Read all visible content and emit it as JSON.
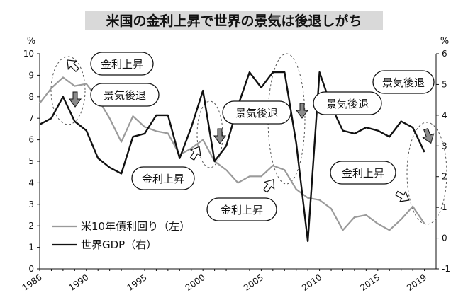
{
  "chart_data": {
    "type": "line",
    "title": "米国の金利上昇で世界の景気は後退しがち",
    "y_left_unit": "%",
    "y_right_unit": "%",
    "y_left_lim": [
      0,
      10
    ],
    "y_right_lim": [
      -1,
      6
    ],
    "y_left_ticks": [
      "0",
      "1",
      "2",
      "3",
      "4",
      "5",
      "6",
      "7",
      "8",
      "9",
      "10"
    ],
    "y_right_ticks": [
      "-1",
      "0",
      "1",
      "2",
      "3",
      "4",
      "5",
      "6"
    ],
    "x_lim": [
      1986,
      2020
    ],
    "x_ticks": [
      "1986",
      "1990",
      "1995",
      "2000",
      "2005",
      "2010",
      "2015",
      "2019"
    ],
    "series": [
      {
        "name": "米10年債利回り（左）",
        "axis": "left",
        "color": "#9a9a9a",
        "x": [
          1986,
          1987,
          1988,
          1989,
          1990,
          1991,
          1992,
          1993,
          1994,
          1995,
          1996,
          1997,
          1998,
          1999,
          2000,
          2001,
          2002,
          2003,
          2004,
          2005,
          2006,
          2007,
          2008,
          2009,
          2010,
          2011,
          2012,
          2013,
          2014,
          2015,
          2016,
          2017,
          2018,
          2019
        ],
        "values": [
          7.7,
          8.4,
          8.9,
          8.5,
          8.6,
          7.9,
          7.0,
          5.9,
          7.1,
          6.6,
          6.4,
          6.3,
          5.3,
          5.6,
          6.0,
          5.0,
          4.6,
          4.0,
          4.3,
          4.3,
          4.8,
          4.6,
          3.7,
          3.3,
          3.2,
          2.8,
          1.8,
          2.4,
          2.5,
          2.1,
          1.8,
          2.3,
          2.9,
          2.1
        ]
      },
      {
        "name": "世界GDP（右）",
        "axis": "right",
        "color": "#111111",
        "x": [
          1986,
          1987,
          1988,
          1989,
          1990,
          1991,
          1992,
          1993,
          1994,
          1995,
          1996,
          1997,
          1998,
          1999,
          2000,
          2001,
          2002,
          2003,
          2004,
          2005,
          2006,
          2007,
          2008,
          2009,
          2010,
          2011,
          2012,
          2013,
          2014,
          2015,
          2016,
          2017,
          2018,
          2019
        ],
        "values": [
          3.7,
          3.9,
          4.6,
          3.8,
          3.5,
          2.6,
          2.3,
          2.1,
          3.3,
          3.4,
          4.0,
          4.0,
          2.6,
          3.6,
          4.8,
          2.5,
          3.0,
          4.3,
          5.4,
          4.9,
          5.4,
          5.4,
          3.1,
          -0.1,
          5.4,
          4.3,
          3.5,
          3.4,
          3.6,
          3.5,
          3.3,
          3.8,
          3.6,
          2.8
        ]
      }
    ],
    "legend": [
      {
        "label": "米10年債利回り（左）",
        "color": "#9a9a9a"
      },
      {
        "label": "世界GDP（右）",
        "color": "#111111"
      }
    ],
    "annotations": [
      {
        "text": "金利上昇"
      },
      {
        "text": "景気後退"
      },
      {
        "text": "金利上昇"
      },
      {
        "text": "景気後退"
      },
      {
        "text": "金利上昇"
      },
      {
        "text": "景気後退"
      },
      {
        "text": "金利上昇"
      },
      {
        "text": "景気後退"
      }
    ]
  }
}
